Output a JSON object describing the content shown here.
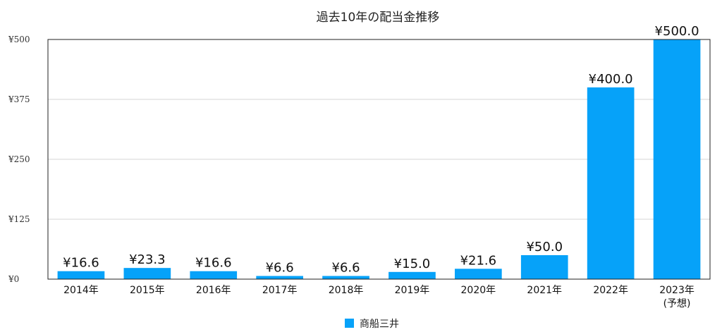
{
  "chart_data": {
    "type": "bar",
    "title": "過去10年の配当金推移",
    "categories": [
      "2014年",
      "2015年",
      "2016年",
      "2017年",
      "2018年",
      "2019年",
      "2020年",
      "2021年",
      "2022年",
      "2023年"
    ],
    "category_sublabels": [
      "",
      "",
      "",
      "",
      "",
      "",
      "",
      "",
      "",
      "(予想)"
    ],
    "series": [
      {
        "name": "商船三井",
        "color": "#06a2f9",
        "values": [
          16.6,
          23.3,
          16.6,
          6.6,
          6.6,
          15.0,
          21.6,
          50.0,
          400.0,
          500.0
        ],
        "labels": [
          "¥16.6",
          "¥23.3",
          "¥16.6",
          "¥6.6",
          "¥6.6",
          "¥15.0",
          "¥21.6",
          "¥50.0",
          "¥400.0",
          "¥500.0"
        ]
      }
    ],
    "ylim": [
      0,
      500
    ],
    "yticks": [
      0,
      125,
      250,
      375,
      500
    ],
    "ytick_labels": [
      "¥0",
      "¥125",
      "¥250",
      "¥375",
      "¥500"
    ],
    "grid": true,
    "legend_position": "bottom"
  }
}
